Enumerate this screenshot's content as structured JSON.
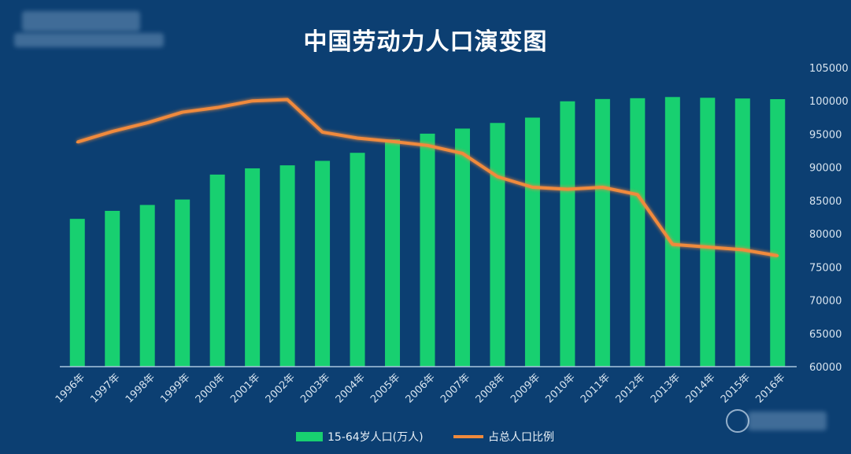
{
  "chart_data": {
    "type": "bar+line",
    "title": "中国劳动力人口演变图",
    "categories": [
      "1996年",
      "1997年",
      "1998年",
      "1999年",
      "2000年",
      "2001年",
      "2002年",
      "2003年",
      "2004年",
      "2005年",
      "2006年",
      "2007年",
      "2008年",
      "2009年",
      "2010年",
      "2011年",
      "2012年",
      "2013年",
      "2014年",
      "2015年",
      "2016年"
    ],
    "y_right": {
      "ylim": [
        60000,
        105000
      ],
      "ticks": [
        60000,
        65000,
        70000,
        75000,
        80000,
        85000,
        90000,
        95000,
        100000,
        105000
      ]
    },
    "series": [
      {
        "name": "15-64岁人口(万人)",
        "kind": "bar",
        "color": "#18d070",
        "values": [
          82245,
          83448,
          84338,
          85157,
          88910,
          89849,
          90302,
          90976,
          92184,
          94197,
          95068,
          95833,
          96680,
          97484,
          99938,
          100283,
          100403,
          100582,
          100469,
          100361,
          100260
        ]
      },
      {
        "name": "占总人口比例",
        "kind": "line",
        "color": "#f08a3c",
        "values_on_axis": [
          93800,
          95400,
          96700,
          98300,
          99000,
          100000,
          100200,
          95300,
          94400,
          93900,
          93300,
          92100,
          88600,
          87000,
          86700,
          87000,
          85900,
          78400,
          78000,
          77600,
          76700
        ]
      }
    ],
    "legend": {
      "position": "bottom"
    },
    "grid": false
  }
}
